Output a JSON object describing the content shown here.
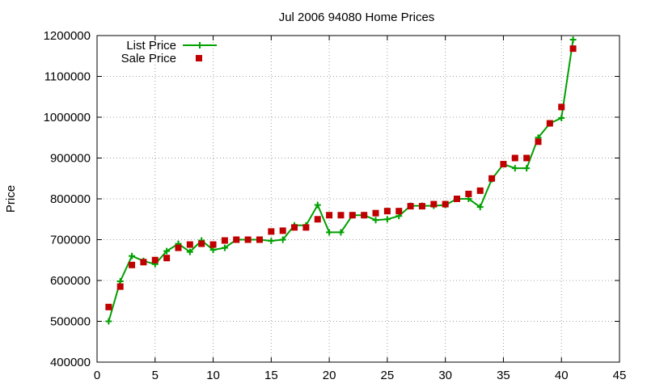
{
  "chart_data": {
    "type": "line",
    "title": "Jul 2006 94080 Home Prices",
    "xlabel": "",
    "ylabel": "Price",
    "xlim": [
      0,
      45
    ],
    "ylim": [
      400000,
      1200000
    ],
    "x_ticks": [
      0,
      5,
      10,
      15,
      20,
      25,
      30,
      35,
      40,
      45
    ],
    "y_ticks": [
      400000,
      500000,
      600000,
      700000,
      800000,
      900000,
      1000000,
      1100000,
      1200000
    ],
    "x_tick_labels": [
      "0",
      "5",
      "10",
      "15",
      "20",
      "25",
      "30",
      "35",
      "40",
      "45"
    ],
    "y_tick_labels": [
      "400000",
      "500000",
      "600000",
      "700000",
      "800000",
      "900000",
      "1000000",
      "1100000",
      "1200000"
    ],
    "grid": true,
    "legend_position": "top-left",
    "x": [
      1,
      2,
      3,
      4,
      5,
      6,
      7,
      8,
      9,
      10,
      11,
      12,
      13,
      14,
      15,
      16,
      17,
      18,
      19,
      20,
      21,
      22,
      23,
      24,
      25,
      26,
      27,
      28,
      29,
      30,
      31,
      32,
      33,
      34,
      35,
      36,
      37,
      38,
      39,
      40,
      41
    ],
    "series": [
      {
        "name": "List Price",
        "style": "line-with-plus",
        "color": "#00a000",
        "values": [
          500000,
          598000,
          660000,
          648000,
          640000,
          672000,
          690000,
          670000,
          698000,
          675000,
          680000,
          700000,
          700000,
          700000,
          697000,
          700000,
          735000,
          735000,
          785000,
          718000,
          718000,
          760000,
          760000,
          748000,
          750000,
          758000,
          783000,
          783000,
          783000,
          785000,
          800000,
          800000,
          780000,
          848000,
          885000,
          875000,
          875000,
          950000,
          985000,
          998000,
          1190000
        ]
      },
      {
        "name": "Sale Price",
        "style": "square-markers",
        "color": "#c00000",
        "values": [
          535000,
          585000,
          638000,
          645000,
          650000,
          655000,
          680000,
          688000,
          690000,
          688000,
          698000,
          700000,
          700000,
          700000,
          720000,
          722000,
          730000,
          730000,
          750000,
          760000,
          760000,
          760000,
          760000,
          765000,
          770000,
          770000,
          782000,
          782000,
          787000,
          787000,
          800000,
          812000,
          820000,
          850000,
          885000,
          900000,
          900000,
          940000,
          985000,
          1025000,
          1168000
        ]
      }
    ]
  }
}
